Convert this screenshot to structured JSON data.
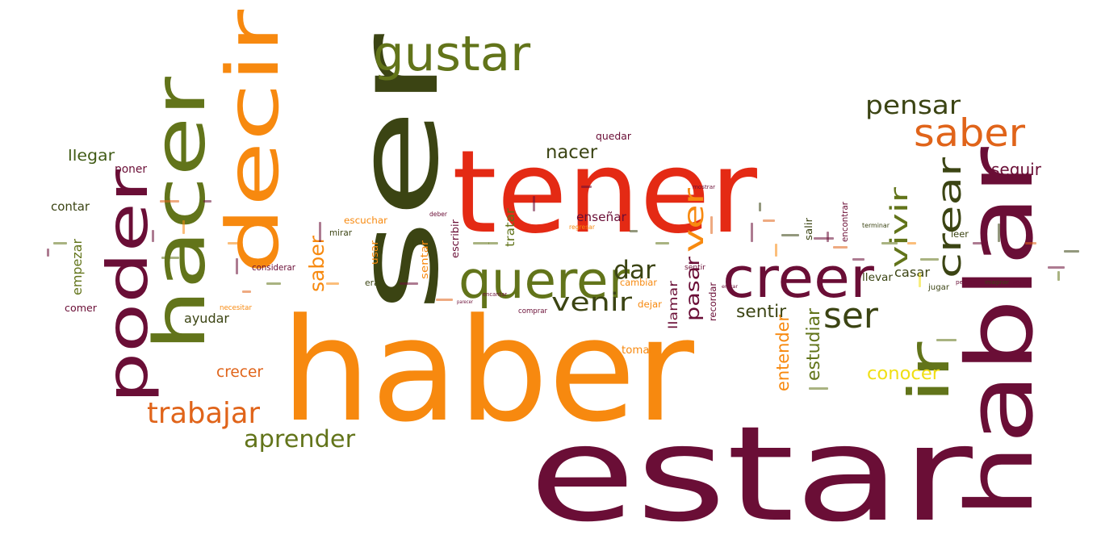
{
  "palette": {
    "maroon": "#6a0e36",
    "orange": "#f7890f",
    "olive": "#62741a",
    "red": "#e42a14",
    "darkolive": "#3b4413",
    "burnt": "#e0641a",
    "yellow": "#f0df14",
    "green": "#3f5a14"
  },
  "words": [
    {
      "text": "haber",
      "color": "orange"
    },
    {
      "text": "estar",
      "color": "maroon"
    },
    {
      "text": "tener",
      "color": "red"
    },
    {
      "text": "ser",
      "color": "darkolive",
      "rotated": true
    },
    {
      "text": "hablar",
      "color": "maroon",
      "rotated": true
    },
    {
      "text": "decir",
      "color": "orange",
      "rotated": true
    },
    {
      "text": "hacer",
      "color": "olive",
      "rotated": true
    },
    {
      "text": "poder",
      "color": "maroon",
      "rotated": true
    },
    {
      "text": "ir",
      "color": "olive",
      "rotated": true
    },
    {
      "text": "gustar",
      "color": "olive"
    },
    {
      "text": "creer",
      "color": "maroon"
    },
    {
      "text": "querer",
      "color": "olive"
    },
    {
      "text": "saber",
      "color": "burnt"
    },
    {
      "text": "pensar",
      "color": "darkolive"
    },
    {
      "text": "crear",
      "color": "darkolive",
      "rotated": true
    },
    {
      "text": "ser",
      "color": "darkolive"
    },
    {
      "text": "ver",
      "color": "orange",
      "rotated": true
    },
    {
      "text": "venir",
      "color": "darkolive"
    },
    {
      "text": "vivir",
      "color": "olive",
      "rotated": true
    },
    {
      "text": "dar",
      "color": "darkolive"
    },
    {
      "text": "trabajar",
      "color": "burnt"
    },
    {
      "text": "aprender",
      "color": "olive"
    },
    {
      "text": "saber",
      "color": "orange",
      "rotated": true
    },
    {
      "text": "pasar",
      "color": "maroon",
      "rotated": true
    },
    {
      "text": "nacer",
      "color": "darkolive"
    },
    {
      "text": "sentir",
      "color": "darkolive"
    },
    {
      "text": "estudiar",
      "color": "olive",
      "rotated": true
    },
    {
      "text": "entender",
      "color": "orange",
      "rotated": true
    },
    {
      "text": "conocer",
      "color": "yellow"
    },
    {
      "text": "seguir",
      "color": "maroon"
    },
    {
      "text": "empezar",
      "color": "olive",
      "rotated": true
    },
    {
      "text": "llegar",
      "color": "green"
    },
    {
      "text": "ayudar",
      "color": "darkolive"
    },
    {
      "text": "crecer",
      "color": "burnt"
    },
    {
      "text": "enseñar",
      "color": "maroon"
    },
    {
      "text": "llamar",
      "color": "maroon",
      "rotated": true
    },
    {
      "text": "tratar",
      "color": "olive",
      "rotated": true
    },
    {
      "text": "casar",
      "color": "darkolive"
    },
    {
      "text": "llevar",
      "color": "darkolive"
    },
    {
      "text": "leer",
      "color": "darkolive"
    },
    {
      "text": "jugar",
      "color": "darkolive"
    },
    {
      "text": "poner",
      "color": "maroon"
    },
    {
      "text": "contar",
      "color": "darkolive"
    },
    {
      "text": "comer",
      "color": "maroon"
    },
    {
      "text": "quedar",
      "color": "maroon"
    },
    {
      "text": "tomar",
      "color": "orange"
    },
    {
      "text": "dejar",
      "color": "orange"
    },
    {
      "text": "cambiar",
      "color": "orange"
    },
    {
      "text": "recordar",
      "color": "maroon",
      "rotated": true
    },
    {
      "text": "escuchar",
      "color": "orange"
    },
    {
      "text": "usar",
      "color": "orange",
      "rotated": true
    },
    {
      "text": "sentar",
      "color": "orange",
      "rotated": true
    },
    {
      "text": "escribir",
      "color": "maroon",
      "rotated": true
    },
    {
      "text": "mirar",
      "color": "darkolive"
    },
    {
      "text": "considerar",
      "color": "maroon"
    },
    {
      "text": "erar",
      "color": "darkolive"
    },
    {
      "text": "encontrar",
      "color": "maroon",
      "rotated": true
    },
    {
      "text": "salir",
      "color": "darkolive",
      "rotated": true
    },
    {
      "text": "sentir",
      "color": "maroon"
    },
    {
      "text": "comprar",
      "color": "maroon"
    },
    {
      "text": "deber",
      "color": "maroon"
    },
    {
      "text": "encantar",
      "color": "maroon"
    },
    {
      "text": "regresar",
      "color": "orange"
    },
    {
      "text": "terminar",
      "color": "darkolive"
    },
    {
      "text": "imaginar",
      "color": "darkolive"
    },
    {
      "text": "perder",
      "color": "maroon"
    },
    {
      "text": "morir",
      "color": "maroon"
    },
    {
      "text": "parecer",
      "color": "maroon"
    },
    {
      "text": "entrar",
      "color": "maroon"
    },
    {
      "text": "necesitar",
      "color": "orange"
    },
    {
      "text": "mostrar",
      "color": "maroon"
    }
  ]
}
